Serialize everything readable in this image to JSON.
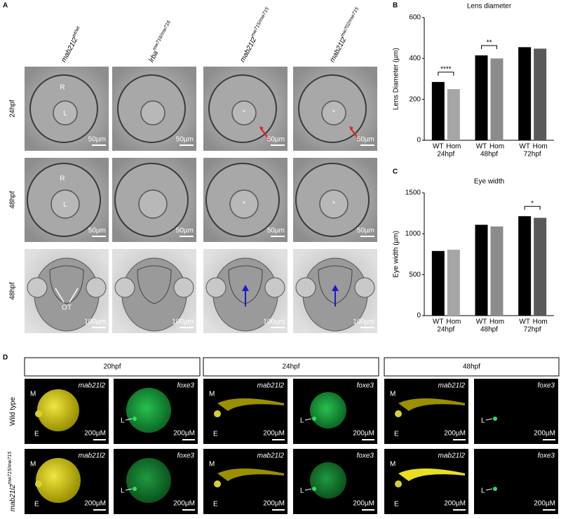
{
  "panel_labels": [
    "A",
    "B",
    "C",
    "D"
  ],
  "panel_a": {
    "columns": [
      {
        "base": "mab21l2",
        "sup": "wt/wt"
      },
      {
        "base": "lrba",
        "sup": "mw716/mw716"
      },
      {
        "base": "mab21l2",
        "sup": "mw715/mw715"
      },
      {
        "base": "mab21l2",
        "sup": "mw702/mw715"
      }
    ],
    "rows": [
      "24hpf",
      "48hpf",
      "48hpf"
    ],
    "scale_bars": [
      "50µm",
      "50µm",
      "100µm"
    ],
    "markers": {
      "retina": "R",
      "lens": "L",
      "star": "*",
      "optic_tectum": "OT"
    }
  },
  "chart_data": [
    {
      "type": "bar",
      "title": "Lens diameter",
      "y_label": "Lens Diameter (µm)",
      "categories": [
        "WT",
        "Hom",
        "WT",
        "Hom",
        "WT",
        "Hom"
      ],
      "groups": [
        "24hpf",
        "48hpf",
        "72hpf"
      ],
      "values": [
        285,
        250,
        415,
        400,
        455,
        448
      ],
      "colors": [
        "#000000",
        "#a6a6a6",
        "#000000",
        "#8c8c8c",
        "#000000",
        "#595959"
      ],
      "ylim": [
        0,
        600
      ],
      "yticks": [
        0,
        200,
        400,
        600
      ],
      "significance": [
        "****",
        "**",
        null
      ]
    },
    {
      "type": "bar",
      "title": "Eye width",
      "y_label": "Eye width (µm)",
      "categories": [
        "WT",
        "Hom",
        "WT",
        "Hom",
        "WT",
        "Hom"
      ],
      "groups": [
        "24hpf",
        "48hpf",
        "72hpf"
      ],
      "values": [
        790,
        805,
        1110,
        1090,
        1215,
        1195
      ],
      "colors": [
        "#000000",
        "#a6a6a6",
        "#000000",
        "#8c8c8c",
        "#000000",
        "#595959"
      ],
      "ylim": [
        0,
        1500
      ],
      "yticks": [
        0,
        500,
        1000,
        1500
      ],
      "significance": [
        null,
        null,
        "*"
      ]
    }
  ],
  "panel_d": {
    "stages": [
      "20hpf",
      "24hpf",
      "48hpf"
    ],
    "rows": [
      {
        "base": "Wild type",
        "sup": ""
      },
      {
        "base": "mab21l2",
        "sup": "mw715/mw715"
      }
    ],
    "genes": [
      "mab21l2",
      "foxe3"
    ],
    "scale_bar": "200µM",
    "markers": {
      "m": "M",
      "e": "E",
      "l": "L"
    }
  }
}
